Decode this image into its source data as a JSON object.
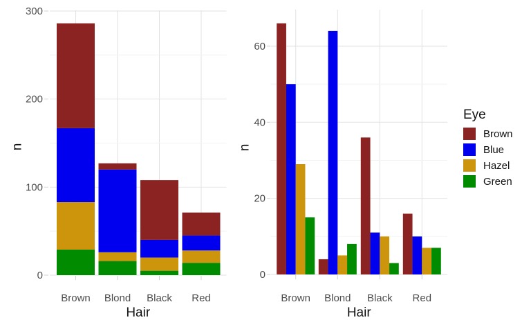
{
  "figure": {
    "background": "#FFFFFF",
    "kind": "two-panel bar chart"
  },
  "axes": {
    "x_title": "Hair",
    "y_title": "n",
    "categories": [
      "Brown",
      "Blond",
      "Black",
      "Red"
    ]
  },
  "legend": {
    "title": "Eye",
    "entries": [
      {
        "label": "Brown",
        "color": "#8B2323"
      },
      {
        "label": "Blue",
        "color": "#0000EE"
      },
      {
        "label": "Hazel",
        "color": "#CD950C"
      },
      {
        "label": "Green",
        "color": "#008B00"
      }
    ]
  },
  "colors": {
    "grid_major": "#E2E2E2",
    "grid_minor": "#F2F2F2",
    "axis_tick": "#D2D2D2",
    "axis_text": "#4D4D4D",
    "axis_title": "#111111"
  },
  "chart_data": [
    {
      "type": "bar",
      "mode": "stacked",
      "title": "",
      "xlabel": "Hair",
      "ylabel": "n",
      "categories": [
        "Brown",
        "Blond",
        "Black",
        "Red"
      ],
      "series": [
        {
          "name": "Brown",
          "color": "#8B2323",
          "values": [
            119,
            7,
            68,
            26
          ]
        },
        {
          "name": "Blue",
          "color": "#0000EE",
          "values": [
            84,
            94,
            20,
            17
          ]
        },
        {
          "name": "Hazel",
          "color": "#CD950C",
          "values": [
            54,
            10,
            15,
            14
          ]
        },
        {
          "name": "Green",
          "color": "#008B00",
          "values": [
            29,
            16,
            5,
            14
          ]
        }
      ],
      "stack_order_bottom_to_top": [
        "Green",
        "Hazel",
        "Blue",
        "Brown"
      ],
      "stack_totals": [
        286,
        127,
        108,
        71
      ],
      "yticks": [
        0,
        100,
        200,
        300
      ],
      "yminor": [
        50,
        150,
        250
      ],
      "ylim": [
        0,
        300.8
      ],
      "grid": true,
      "legend_position": "none"
    },
    {
      "type": "bar",
      "mode": "grouped",
      "title": "",
      "xlabel": "Hair",
      "ylabel": "n",
      "categories": [
        "Brown",
        "Blond",
        "Black",
        "Red"
      ],
      "series": [
        {
          "name": "Brown",
          "color": "#8B2323",
          "values": [
            66,
            4,
            36,
            16
          ]
        },
        {
          "name": "Blue",
          "color": "#0000EE",
          "values": [
            50,
            64,
            11,
            10
          ]
        },
        {
          "name": "Hazel",
          "color": "#CD950C",
          "values": [
            29,
            5,
            10,
            7
          ]
        },
        {
          "name": "Green",
          "color": "#008B00",
          "values": [
            15,
            8,
            3,
            7
          ]
        }
      ],
      "yticks": [
        0,
        20,
        40,
        60
      ],
      "yminor": [
        10,
        30,
        50
      ],
      "ylim": [
        0,
        69.6
      ],
      "grid": true,
      "legend_position": "right"
    }
  ]
}
